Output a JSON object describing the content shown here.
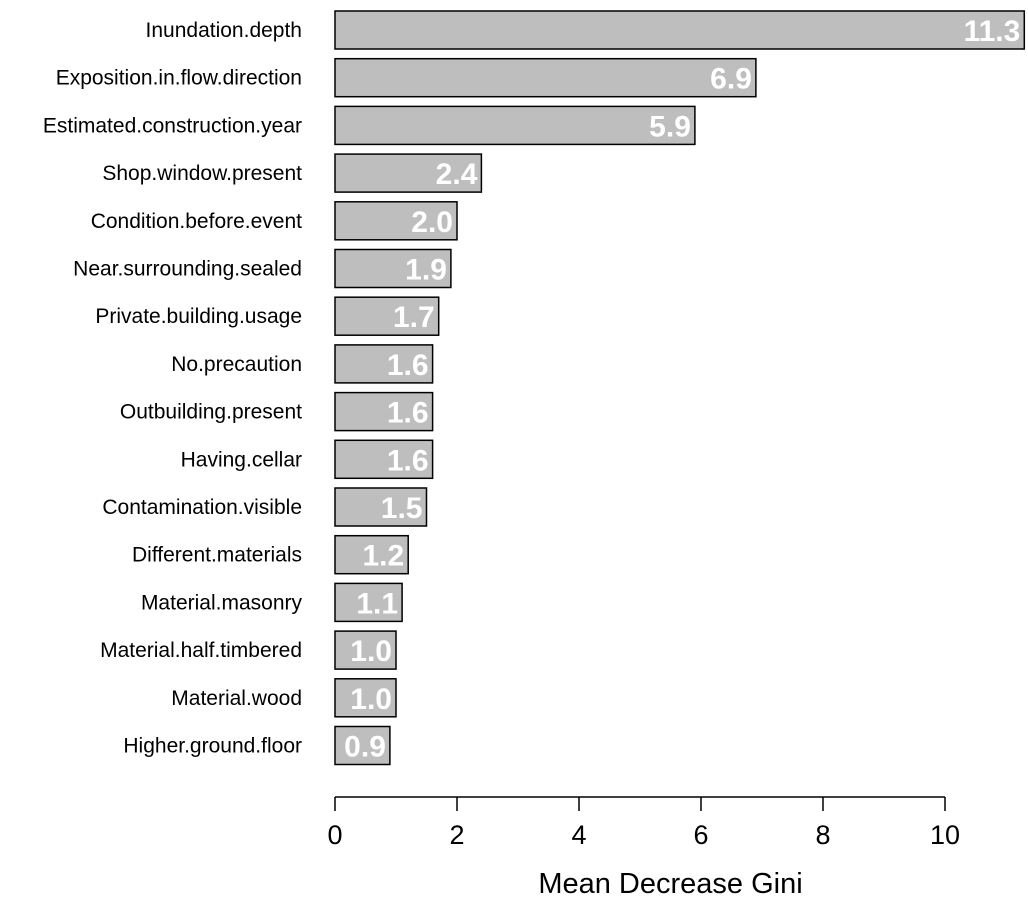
{
  "chart_data": {
    "type": "bar",
    "orientation": "horizontal",
    "categories": [
      "Inundation.depth",
      "Exposition.in.flow.direction",
      "Estimated.construction.year",
      "Shop.window.present",
      "Condition.before.event",
      "Near.surrounding.sealed",
      "Private.building.usage",
      "No.precaution",
      "Outbuilding.present",
      "Having.cellar",
      "Contamination.visible",
      "Different.materials",
      "Material.masonry",
      "Material.half.timbered",
      "Material.wood",
      "Higher.ground.floor"
    ],
    "values": [
      11.3,
      6.9,
      5.9,
      2.4,
      2.0,
      1.9,
      1.7,
      1.6,
      1.6,
      1.6,
      1.5,
      1.2,
      1.1,
      1.0,
      1.0,
      0.9
    ],
    "value_labels": [
      "11.3",
      "6.9",
      "5.9",
      "2.4",
      "2.0",
      "1.9",
      "1.7",
      "1.6",
      "1.6",
      "1.6",
      "1.5",
      "1.2",
      "1.1",
      "1.0",
      "1.0",
      "0.9"
    ],
    "title": "",
    "xlabel": "Mean Decrease Gini",
    "ylabel": "",
    "xlim": [
      0,
      11.3
    ],
    "xticks": [
      "0",
      "2",
      "4",
      "6",
      "8",
      "10"
    ],
    "grid": false,
    "legend": "none",
    "bar_color": "#bebebe",
    "bar_edge_color": "#000000",
    "value_label_color": "#ffffff"
  }
}
